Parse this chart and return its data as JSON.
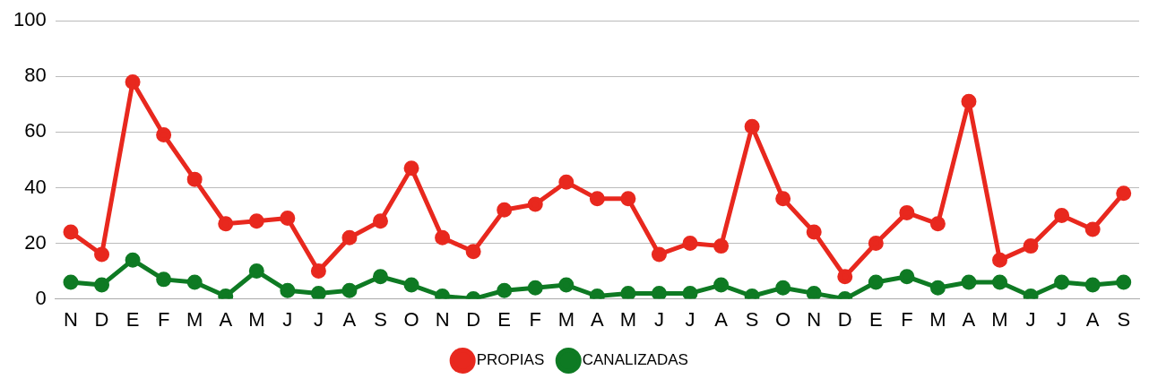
{
  "chart_data": {
    "type": "line",
    "categories": [
      "N",
      "D",
      "E",
      "F",
      "M",
      "A",
      "M",
      "J",
      "J",
      "A",
      "S",
      "O",
      "N",
      "D",
      "E",
      "F",
      "M",
      "A",
      "M",
      "J",
      "J",
      "A",
      "S",
      "O",
      "N",
      "D",
      "E",
      "F",
      "M",
      "A",
      "M",
      "J",
      "J",
      "A",
      "S"
    ],
    "series": [
      {
        "name": "PROPIAS",
        "color": "#e8281e",
        "values": [
          24,
          16,
          78,
          59,
          43,
          27,
          28,
          29,
          10,
          22,
          28,
          47,
          22,
          17,
          32,
          34,
          42,
          36,
          36,
          16,
          20,
          19,
          62,
          36,
          24,
          8,
          20,
          31,
          27,
          71,
          14,
          19,
          30,
          25,
          38
        ]
      },
      {
        "name": "CANALIZADAS",
        "color": "#0e7a23",
        "values": [
          6,
          5,
          14,
          7,
          6,
          1,
          10,
          3,
          2,
          3,
          8,
          5,
          1,
          0,
          3,
          4,
          5,
          1,
          2,
          2,
          2,
          5,
          1,
          4,
          2,
          0,
          6,
          8,
          4,
          6,
          6,
          1,
          6,
          5,
          6
        ]
      }
    ],
    "ylim": [
      0,
      100
    ],
    "yticks": [
      0,
      20,
      40,
      60,
      80,
      100
    ],
    "grid": "y",
    "legend": "bottom",
    "marker": "circle",
    "line_style": "solid"
  }
}
